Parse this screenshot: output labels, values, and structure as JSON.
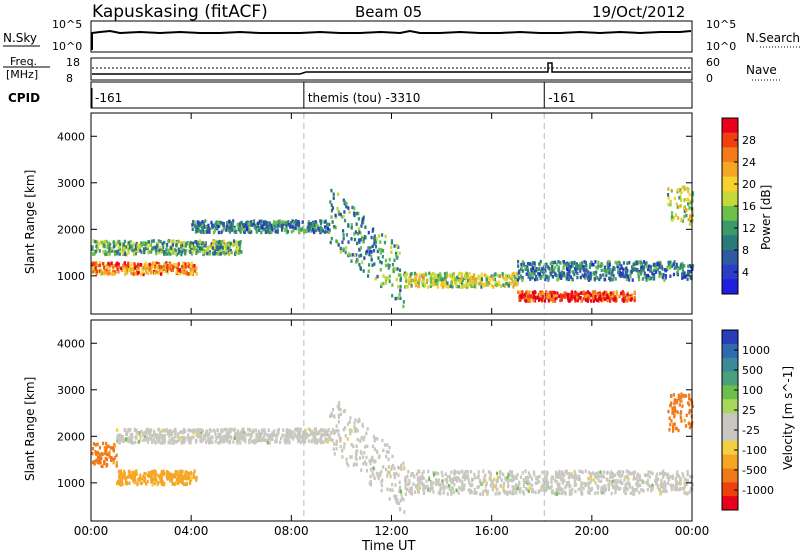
{
  "header": {
    "station": "Kapuskasing (fitACF)",
    "beam": "Beam 05",
    "date": "19/Oct/2012"
  },
  "top_panels": {
    "nsky_label": "N.Sky",
    "nsky_ticks": [
      "10^5",
      "10^0"
    ],
    "nsearch_label": "N.Search",
    "nsearch_ticks": [
      "10^5",
      "10^0"
    ],
    "freq_label_1": "Freq.",
    "freq_label_2": "[MHz]",
    "freq_ticks": [
      "18",
      "8"
    ],
    "nave_label": "Nave",
    "nave_ticks": [
      "60",
      "0"
    ],
    "cpid_label": "CPID",
    "cpid_segments": [
      {
        "start_h": 0.0,
        "end_h": 8.5,
        "label": "-161"
      },
      {
        "start_h": 8.5,
        "end_h": 18.1,
        "label": "themis (tou) -3310"
      },
      {
        "start_h": 18.1,
        "end_h": 24.0,
        "label": "-161"
      }
    ]
  },
  "power_panel": {
    "ylabel": "Slant Range [km]",
    "colorbar_label": "Power [dB]",
    "colorbar_ticks": [
      "28",
      "24",
      "20",
      "16",
      "12",
      "8",
      "4"
    ],
    "colorbar_colors": [
      "#e8001c",
      "#f04010",
      "#f47a1a",
      "#f6a623",
      "#f8d22c",
      "#c4d83a",
      "#6cc04a",
      "#3a9a6a",
      "#2b7a7a",
      "#2e5aa0",
      "#2a3dc8",
      "#1f1fe0"
    ]
  },
  "velocity_panel": {
    "ylabel": "Slant Range [km]",
    "colorbar_label": "Velocity [m s^-1]",
    "colorbar_ticks": [
      "1000",
      "500",
      "100",
      "25",
      "-25",
      "-100",
      "-500",
      "-1000"
    ],
    "colorbar_colors": [
      "#2a3db8",
      "#2e6ab0",
      "#3a8a9a",
      "#4aa07a",
      "#6cc04a",
      "#a8d85a",
      "#c8c8c0",
      "#c8c8c0",
      "#f4d040",
      "#f6a623",
      "#f07a1a",
      "#f04010",
      "#e8001c"
    ]
  },
  "xaxis": {
    "label": "Time UT",
    "ticks": [
      "00:00",
      "04:00",
      "08:00",
      "12:00",
      "16:00",
      "20:00",
      "00:00"
    ]
  },
  "chart_data": [
    {
      "type": "heatmap",
      "name": "power",
      "title": "Kapuskasing (fitACF)  Beam 05  19/Oct/2012",
      "xlabel": "Time UT",
      "ylabel": "Slant Range [km]",
      "xlim": [
        0,
        24
      ],
      "ylim": [
        180,
        4500
      ],
      "yticks": [
        1000,
        2000,
        3000,
        4000
      ],
      "colorbar": {
        "label": "Power [dB]",
        "range": [
          0,
          30
        ],
        "ticks": [
          4,
          8,
          12,
          16,
          20,
          24,
          28
        ]
      },
      "scatter_bands": [
        {
          "t_start": 0.0,
          "t_end": 4.2,
          "range_center_km": 1150,
          "range_width_km": 250,
          "dominant_dB": 24
        },
        {
          "t_start": 0.0,
          "t_end": 6.0,
          "range_center_km": 1600,
          "range_width_km": 300,
          "dominant_dB": 12
        },
        {
          "t_start": 4.0,
          "t_end": 9.5,
          "range_center_km": 2050,
          "range_width_km": 250,
          "dominant_dB": 8
        },
        {
          "t_start": 9.5,
          "t_end": 12.5,
          "range_center_km": 1600,
          "range_width_km": 1200,
          "dominant_dB": 10
        },
        {
          "t_start": 12.5,
          "t_end": 17.0,
          "range_center_km": 900,
          "range_width_km": 300,
          "dominant_dB": 16
        },
        {
          "t_start": 17.0,
          "t_end": 24.0,
          "range_center_km": 1100,
          "range_width_km": 400,
          "dominant_dB": 8
        },
        {
          "t_start": 17.0,
          "t_end": 21.7,
          "range_center_km": 550,
          "range_width_km": 200,
          "dominant_dB": 28
        },
        {
          "t_start": 23.0,
          "t_end": 24.0,
          "range_center_km": 2500,
          "range_width_km": 800,
          "dominant_dB": 16
        }
      ],
      "dashed_markers_h": [
        8.5,
        18.1
      ]
    },
    {
      "type": "heatmap",
      "name": "velocity",
      "xlabel": "Time UT",
      "ylabel": "Slant Range [km]",
      "xlim": [
        0,
        24
      ],
      "ylim": [
        180,
        4500
      ],
      "yticks": [
        1000,
        2000,
        3000,
        4000
      ],
      "colorbar": {
        "label": "Velocity [m s^-1]",
        "range": [
          -1000,
          1000
        ],
        "ticks": [
          1000,
          500,
          100,
          25,
          -25,
          -100,
          -500,
          -1000
        ]
      },
      "scatter_bands": [
        {
          "t_start": 0.0,
          "t_end": 1.0,
          "range_center_km": 1600,
          "range_width_km": 500,
          "dominant_ms": -300
        },
        {
          "t_start": 1.0,
          "t_end": 4.2,
          "range_center_km": 1100,
          "range_width_km": 300,
          "dominant_ms": -100
        },
        {
          "t_start": 1.0,
          "t_end": 9.5,
          "range_center_km": 2000,
          "range_width_km": 300,
          "dominant_ms": 0
        },
        {
          "t_start": 9.5,
          "t_end": 12.5,
          "range_center_km": 1600,
          "range_width_km": 1200,
          "dominant_ms": 0
        },
        {
          "t_start": 12.5,
          "t_end": 24.0,
          "range_center_km": 1000,
          "range_width_km": 500,
          "dominant_ms": 0
        },
        {
          "t_start": 23.0,
          "t_end": 24.0,
          "range_center_km": 2500,
          "range_width_km": 800,
          "dominant_ms": -300
        }
      ],
      "dashed_markers_h": [
        8.5,
        18.1
      ]
    }
  ]
}
